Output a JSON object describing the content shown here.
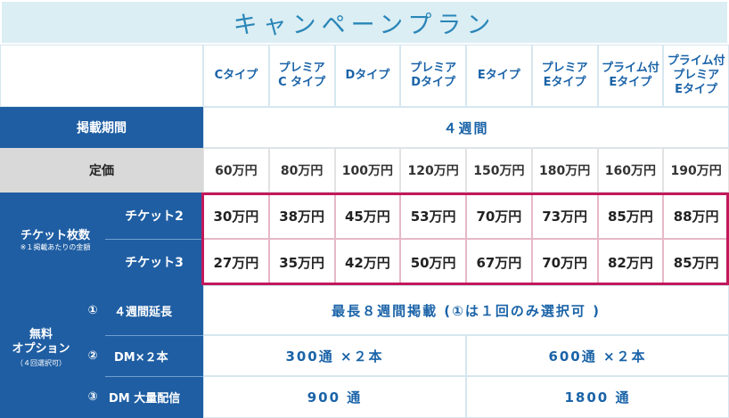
{
  "title": "キャンペーンプラン",
  "columns": [
    [
      "Cタイプ"
    ],
    [
      "プレミア",
      "C タイプ"
    ],
    [
      "Dタイプ"
    ],
    [
      "プレミア",
      "Dタイプ"
    ],
    [
      "Eタイプ"
    ],
    [
      "プレミア",
      "Eタイプ"
    ],
    [
      "プライム付",
      "Eタイプ"
    ],
    [
      "プライム付",
      "プレミア",
      "Eタイプ"
    ]
  ],
  "period": {
    "label": "掲載期間",
    "value": "４週間"
  },
  "list_price": {
    "label": "定価",
    "values": [
      "60万円",
      "80万円",
      "100万円",
      "120万円",
      "150万円",
      "180万円",
      "160万円",
      "190万円"
    ]
  },
  "tickets": {
    "label": "チケット枚数",
    "note": "※１掲載あたりの金額",
    "rows": [
      {
        "label": "チケット2",
        "values": [
          "30万円",
          "38万円",
          "45万円",
          "53万円",
          "70万円",
          "73万円",
          "85万円",
          "88万円"
        ]
      },
      {
        "label": "チケット3",
        "values": [
          "27万円",
          "35万円",
          "42万円",
          "50万円",
          "67万円",
          "70万円",
          "82万円",
          "85万円"
        ]
      }
    ]
  },
  "options": {
    "label_line1": "無料",
    "label_line2": "オプション",
    "note": "（４回選択可）",
    "rows": [
      {
        "num": "①",
        "label": "４週間延長",
        "value": "最長８週間掲載 (①は１回のみ選択可 )"
      },
      {
        "num": "②",
        "label": "DM×２本",
        "value_left": "300通 ×２本",
        "value_right": "600通 ×２本"
      },
      {
        "num": "③",
        "label": "DM 大量配信",
        "value_left": "900 通",
        "value_right": "1800 通"
      }
    ]
  },
  "colors": {
    "header_blue": "#1f5ea3",
    "accent_text": "#1a63a8",
    "highlight_frame": "#c2185b",
    "title_bg": "#dbeef4"
  }
}
